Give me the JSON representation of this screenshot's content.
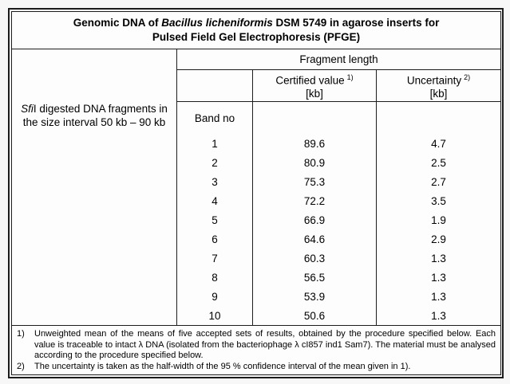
{
  "colors": {
    "page_background": "#f7f7f7",
    "paper_background": "#fdfdfd",
    "border": "#1c1c1c",
    "text": "#000000"
  },
  "title": {
    "line1_prefix": "Genomic DNA of ",
    "line1_italic": "Bacillus licheniformis",
    "line1_suffix": " DSM 5749 in agarose inserts for",
    "line2": "Pulsed Field Gel Electrophoresis (PFGE)"
  },
  "table": {
    "group_header": "Fragment length",
    "columns": [
      {
        "label": "Certified value",
        "footnote_ref": "1)",
        "unit": "[kb]"
      },
      {
        "label": "Uncertainty",
        "footnote_ref": "2)",
        "unit": "[kb]"
      }
    ],
    "row_group": {
      "label_italic": "Sfi",
      "label_rest": "I digested DNA fragments in the size interval 50 kb – 90 kb"
    },
    "band_header": "Band no",
    "rows": [
      {
        "band": "1",
        "certified": "89.6",
        "uncertainty": "4.7"
      },
      {
        "band": "2",
        "certified": "80.9",
        "uncertainty": "2.5"
      },
      {
        "band": "3",
        "certified": "75.3",
        "uncertainty": "2.7"
      },
      {
        "band": "4",
        "certified": "72.2",
        "uncertainty": "3.5"
      },
      {
        "band": "5",
        "certified": "66.9",
        "uncertainty": "1.9"
      },
      {
        "band": "6",
        "certified": "64.6",
        "uncertainty": "2.9"
      },
      {
        "band": "7",
        "certified": "60.3",
        "uncertainty": "1.3"
      },
      {
        "band": "8",
        "certified": "56.5",
        "uncertainty": "1.3"
      },
      {
        "band": "9",
        "certified": "53.9",
        "uncertainty": "1.3"
      },
      {
        "band": "10",
        "certified": "50.6",
        "uncertainty": "1.3"
      }
    ]
  },
  "footnotes": [
    {
      "ref": "1)",
      "text": "Unweighted mean of the means of five accepted sets of results, obtained by the procedure specified below. Each value is traceable to intact λ DNA (isolated from the bacteriophage λ cI857 ind1 Sam7). The material must be analysed according to the procedure specified below."
    },
    {
      "ref": "2)",
      "text": "The uncertainty is taken as the half-width of the 95 % confidence interval of the mean given in 1)."
    }
  ]
}
